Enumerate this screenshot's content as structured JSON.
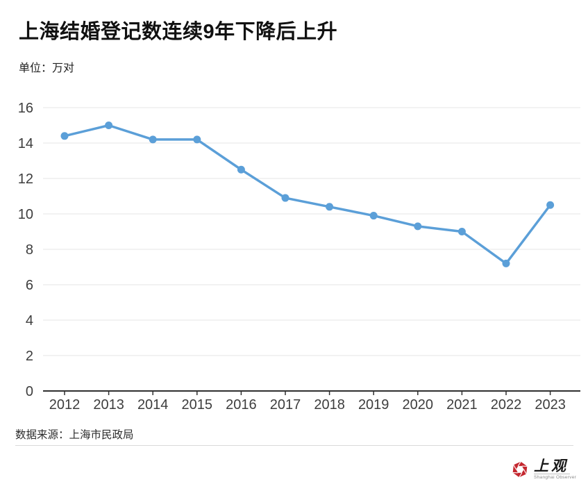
{
  "header": {
    "title": "上海结婚登记数连续9年下降后上升",
    "unit_label": "单位：万对"
  },
  "chart_data": {
    "type": "line",
    "title": "上海结婚登记数连续9年下降后上升",
    "categories": [
      "2012",
      "2013",
      "2014",
      "2015",
      "2016",
      "2017",
      "2018",
      "2019",
      "2020",
      "2021",
      "2022",
      "2023"
    ],
    "values": [
      14.4,
      15.0,
      14.2,
      14.2,
      12.5,
      10.9,
      10.4,
      9.9,
      9.3,
      9.0,
      7.2,
      10.5
    ],
    "xlabel": "",
    "ylabel": "万对",
    "ylim": [
      0,
      16
    ],
    "ytick_step": 2,
    "grid": true,
    "legend": "none",
    "line_color": "#5b9fd8",
    "point_color": "#5b9fd8",
    "grid_color": "#e4e4e4",
    "axis_color": "#2f2f2f",
    "tick_label_color": "#3d3d3d"
  },
  "footer": {
    "source": "数据来源：上海市民政局"
  },
  "logo": {
    "name": "上观",
    "subtitle": "Shanghai Observer",
    "color": "#c4272f"
  }
}
